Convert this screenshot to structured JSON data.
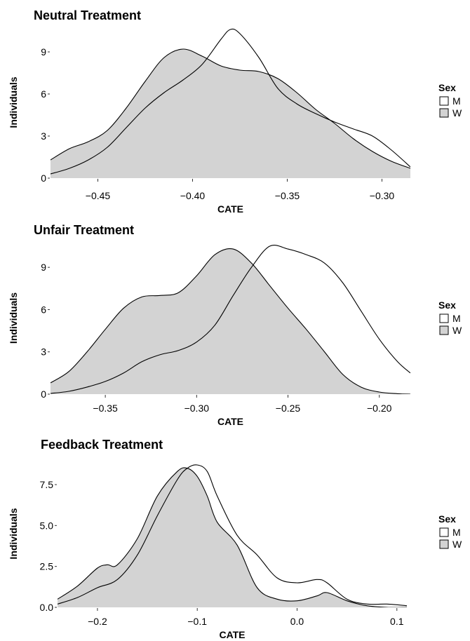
{
  "chart_data": [
    {
      "type": "area",
      "title": "Neutral Treatment",
      "xlabel": "CATE",
      "ylabel": "Individuals",
      "xlim": [
        -0.475,
        -0.285
      ],
      "ylim": [
        0,
        10.8
      ],
      "xticks": [
        -0.45,
        -0.4,
        -0.35,
        -0.3
      ],
      "xtick_labels": [
        "−0.45",
        "−0.40",
        "−0.35",
        "−0.30"
      ],
      "yticks": [
        0,
        3,
        6,
        9
      ],
      "ytick_labels": [
        "0",
        "3",
        "6",
        "9"
      ],
      "legend": {
        "title": "Sex",
        "position": "right",
        "entries": [
          "M",
          "W"
        ]
      },
      "series": [
        {
          "name": "M",
          "fill": "#ffffff",
          "x": [
            -0.475,
            -0.465,
            -0.455,
            -0.445,
            -0.435,
            -0.425,
            -0.415,
            -0.405,
            -0.395,
            -0.385,
            -0.38,
            -0.375,
            -0.365,
            -0.355,
            -0.345,
            -0.335,
            -0.325,
            -0.315,
            -0.305,
            -0.295,
            -0.285
          ],
          "y": [
            0.3,
            0.7,
            1.3,
            2.2,
            3.6,
            5.0,
            6.1,
            7.0,
            8.1,
            9.9,
            10.6,
            10.3,
            8.6,
            6.4,
            5.3,
            4.6,
            4.0,
            3.5,
            3.0,
            2.0,
            0.8
          ]
        },
        {
          "name": "W",
          "fill": "#d3d3d3",
          "x": [
            -0.475,
            -0.465,
            -0.455,
            -0.445,
            -0.435,
            -0.425,
            -0.415,
            -0.405,
            -0.395,
            -0.385,
            -0.375,
            -0.365,
            -0.355,
            -0.345,
            -0.335,
            -0.325,
            -0.315,
            -0.305,
            -0.295,
            -0.285
          ],
          "y": [
            1.3,
            2.1,
            2.6,
            3.4,
            5.0,
            6.9,
            8.6,
            9.2,
            8.7,
            8.0,
            7.7,
            7.6,
            7.1,
            6.1,
            4.9,
            3.9,
            2.8,
            1.9,
            1.2,
            0.7
          ]
        }
      ]
    },
    {
      "type": "area",
      "title": "Unfair Treatment",
      "xlabel": "CATE",
      "ylabel": "Individuals",
      "xlim": [
        -0.38,
        -0.183
      ],
      "ylim": [
        0,
        10.8
      ],
      "xticks": [
        -0.35,
        -0.3,
        -0.25,
        -0.2
      ],
      "xtick_labels": [
        "−0.35",
        "−0.30",
        "−0.25",
        "−0.20"
      ],
      "yticks": [
        0,
        3,
        6,
        9
      ],
      "ytick_labels": [
        "0",
        "3",
        "6",
        "9"
      ],
      "legend": {
        "title": "Sex",
        "position": "right",
        "entries": [
          "M",
          "W"
        ]
      },
      "series": [
        {
          "name": "M",
          "fill": "#ffffff",
          "x": [
            -0.38,
            -0.37,
            -0.36,
            -0.35,
            -0.34,
            -0.33,
            -0.32,
            -0.31,
            -0.3,
            -0.29,
            -0.28,
            -0.27,
            -0.26,
            -0.25,
            -0.24,
            -0.23,
            -0.22,
            -0.21,
            -0.2,
            -0.19,
            -0.183
          ],
          "y": [
            0.05,
            0.2,
            0.5,
            0.9,
            1.5,
            2.3,
            2.8,
            3.1,
            3.7,
            4.9,
            7.0,
            9.0,
            10.5,
            10.3,
            9.9,
            9.3,
            7.9,
            5.9,
            3.9,
            2.3,
            1.5
          ]
        },
        {
          "name": "W",
          "fill": "#d3d3d3",
          "x": [
            -0.38,
            -0.37,
            -0.36,
            -0.35,
            -0.34,
            -0.33,
            -0.32,
            -0.31,
            -0.3,
            -0.29,
            -0.28,
            -0.27,
            -0.26,
            -0.25,
            -0.24,
            -0.23,
            -0.22,
            -0.21,
            -0.2,
            -0.19,
            -0.183
          ],
          "y": [
            0.8,
            1.6,
            3.0,
            4.6,
            6.1,
            6.9,
            7.0,
            7.2,
            8.4,
            9.9,
            10.3,
            9.3,
            7.7,
            6.1,
            4.6,
            3.0,
            1.4,
            0.5,
            0.15,
            0.03,
            0.0
          ]
        }
      ]
    },
    {
      "type": "area",
      "title": "Feedback Treatment",
      "xlabel": "CATE",
      "ylabel": "Individuals",
      "xlim": [
        -0.24,
        0.11
      ],
      "ylim": [
        0,
        9.0
      ],
      "xticks": [
        -0.2,
        -0.1,
        0.0,
        0.1
      ],
      "xtick_labels": [
        "−0.2",
        "−0.1",
        "0.0",
        "0.1"
      ],
      "yticks": [
        0,
        2.5,
        5.0,
        7.5
      ],
      "ytick_labels": [
        "0.0",
        "2.5",
        "5.0",
        "7.5"
      ],
      "legend": {
        "title": "Sex",
        "position": "right",
        "entries": [
          "M",
          "W"
        ]
      },
      "series": [
        {
          "name": "M",
          "fill": "#ffffff",
          "x": [
            -0.24,
            -0.22,
            -0.2,
            -0.18,
            -0.16,
            -0.14,
            -0.12,
            -0.11,
            -0.1,
            -0.09,
            -0.08,
            -0.06,
            -0.04,
            -0.02,
            0.0,
            0.02,
            0.03,
            0.05,
            0.07,
            0.09,
            0.11
          ],
          "y": [
            0.2,
            0.6,
            1.2,
            1.7,
            3.2,
            5.6,
            7.8,
            8.5,
            8.7,
            8.3,
            6.8,
            4.4,
            3.2,
            1.8,
            1.5,
            1.7,
            1.5,
            0.5,
            0.2,
            0.2,
            0.1
          ]
        },
        {
          "name": "W",
          "fill": "#d3d3d3",
          "x": [
            -0.24,
            -0.22,
            -0.2,
            -0.19,
            -0.18,
            -0.16,
            -0.14,
            -0.12,
            -0.11,
            -0.1,
            -0.09,
            -0.08,
            -0.06,
            -0.04,
            -0.02,
            0.0,
            0.02,
            0.03,
            0.05,
            0.07,
            0.09,
            0.11
          ],
          "y": [
            0.5,
            1.3,
            2.4,
            2.6,
            2.6,
            4.2,
            6.8,
            8.3,
            8.5,
            8.0,
            6.8,
            5.2,
            3.8,
            1.2,
            0.5,
            0.4,
            0.7,
            0.9,
            0.4,
            0.1,
            0.0,
            0.0
          ]
        }
      ]
    }
  ]
}
